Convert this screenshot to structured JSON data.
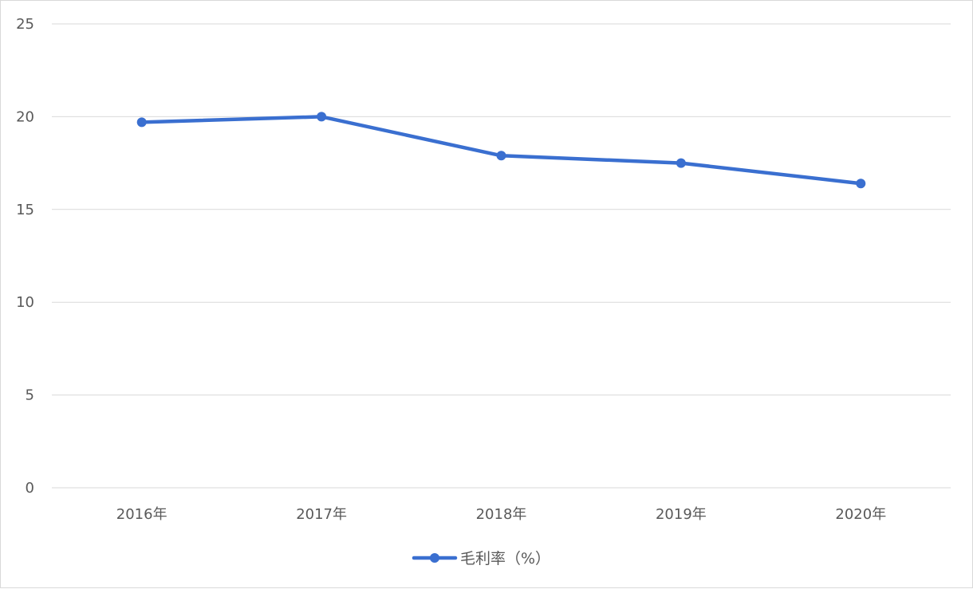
{
  "chart_data": {
    "type": "line",
    "categories": [
      "2016年",
      "2017年",
      "2018年",
      "2019年",
      "2020年"
    ],
    "series": [
      {
        "name": "毛利率（%）",
        "values": [
          19.7,
          20.0,
          17.9,
          17.5,
          16.4
        ],
        "color": "#3a6fd0"
      }
    ],
    "y_ticks": [
      "0",
      "5",
      "10",
      "15",
      "20",
      "25"
    ],
    "ylim": [
      0,
      25
    ],
    "grid": true,
    "legend_position": "bottom"
  }
}
